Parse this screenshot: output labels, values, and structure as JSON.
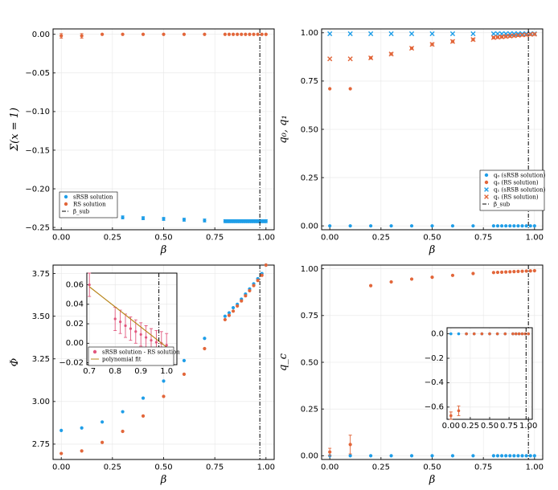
{
  "colors": {
    "blue": "#1f9ee8",
    "orange": "#e2663a",
    "pink": "#e2577e",
    "olive": "#b8861b"
  },
  "chart_data": [
    {
      "id": "tl",
      "type": "scatter",
      "xlabel": "β",
      "ylabel": "Σ(x = 1)",
      "xlim": [
        -0.04,
        1.04
      ],
      "ylim": [
        -0.253,
        0.007
      ],
      "xticks": [
        0,
        0.25,
        0.5,
        0.75,
        1.0
      ],
      "xtick_labels": [
        "0.00",
        "0.25",
        "0.50",
        "0.75",
        "1.00"
      ],
      "yticks": [
        0,
        -0.05,
        -0.1,
        -0.15,
        -0.2,
        -0.25
      ],
      "ytick_labels": [
        "0.00",
        "−0.05",
        "−0.10",
        "−0.15",
        "−0.20",
        "−0.25"
      ],
      "vline": 0.97,
      "legend_position": "bottom-left",
      "grid": true,
      "series": [
        {
          "name": "sRSB solution",
          "color": "blue",
          "marker": "circle",
          "x": [
            0.3,
            0.4,
            0.5,
            0.6,
            0.7,
            0.8,
            0.81,
            0.82,
            0.83,
            0.84,
            0.85,
            0.86,
            0.87,
            0.88,
            0.89,
            0.9,
            0.91,
            0.92,
            0.93,
            0.94,
            0.95,
            0.96,
            0.97,
            0.98,
            0.99,
            1.0
          ],
          "y": [
            -0.237,
            -0.238,
            -0.239,
            -0.24,
            -0.241,
            -0.242,
            -0.242,
            -0.242,
            -0.242,
            -0.242,
            -0.242,
            -0.242,
            -0.242,
            -0.242,
            -0.242,
            -0.242,
            -0.242,
            -0.242,
            -0.242,
            -0.242,
            -0.242,
            -0.242,
            -0.242,
            -0.242,
            -0.242,
            -0.242
          ],
          "err": [
            0.002,
            0.002,
            0.002,
            0.002,
            0.002,
            0.002,
            0.002,
            0.002,
            0.002,
            0.002,
            0.002,
            0.002,
            0.002,
            0.002,
            0.002,
            0.002,
            0.002,
            0.002,
            0.002,
            0.002,
            0.002,
            0.002,
            0.002,
            0.002,
            0.002,
            0.002
          ]
        },
        {
          "name": "RS solution",
          "color": "orange",
          "marker": "circle",
          "x": [
            0.0,
            0.1,
            0.2,
            0.3,
            0.4,
            0.5,
            0.6,
            0.7,
            0.8,
            0.82,
            0.84,
            0.86,
            0.88,
            0.9,
            0.92,
            0.94,
            0.96,
            0.98,
            1.0
          ],
          "y": [
            -0.002,
            -0.002,
            0.0,
            0.0,
            0.0,
            0.0,
            0.0,
            0.0,
            0.0,
            0.0,
            0.0,
            0.0,
            0.0,
            0.0,
            0.0,
            0.0,
            0.0,
            0.0,
            0.0
          ],
          "err": [
            0.003,
            0.003,
            0,
            0,
            0,
            0,
            0,
            0,
            0,
            0,
            0,
            0,
            0,
            0,
            0,
            0,
            0,
            0,
            0
          ]
        }
      ],
      "legend_extra": "β_sub"
    },
    {
      "id": "tr",
      "type": "scatter",
      "xlabel": "β",
      "ylabel": "q₀, q₁",
      "xlim": [
        -0.04,
        1.04
      ],
      "ylim": [
        -0.02,
        1.02
      ],
      "xticks": [
        0,
        0.25,
        0.5,
        0.75,
        1.0
      ],
      "xtick_labels": [
        "0.00",
        "0.25",
        "0.50",
        "0.75",
        "1.00"
      ],
      "yticks": [
        0,
        0.25,
        0.5,
        0.75,
        1.0
      ],
      "ytick_labels": [
        "0.00",
        "0.25",
        "0.50",
        "0.75",
        "1.00"
      ],
      "vline": 0.97,
      "legend_position": "bottom-right",
      "grid": true,
      "series": [
        {
          "name": "q₀ (sRSB solution)",
          "color": "blue",
          "marker": "circle",
          "x": [
            0.0,
            0.1,
            0.2,
            0.3,
            0.4,
            0.5,
            0.6,
            0.7,
            0.8,
            0.82,
            0.84,
            0.86,
            0.88,
            0.9,
            0.92,
            0.94,
            0.96,
            0.98,
            1.0
          ],
          "y": [
            0,
            0,
            0,
            0,
            0,
            0,
            0,
            0,
            0,
            0,
            0,
            0,
            0,
            0,
            0,
            0,
            0,
            0,
            0
          ]
        },
        {
          "name": "q₀ (RS solution)",
          "color": "orange",
          "marker": "circle",
          "x": [
            0.0,
            0.1,
            0.2,
            0.3,
            0.4,
            0.5,
            0.6,
            0.7,
            0.8,
            0.82,
            0.84,
            0.86,
            0.88,
            0.9,
            0.92,
            0.94,
            0.96,
            0.98,
            1.0
          ],
          "y": [
            0.71,
            0.71,
            0.87,
            0.89,
            0.92,
            0.94,
            0.955,
            0.965,
            0.975,
            0.977,
            0.979,
            0.981,
            0.983,
            0.985,
            0.987,
            0.989,
            0.99,
            0.992,
            0.993
          ]
        },
        {
          "name": "q₁ (sRSB solution)",
          "color": "blue",
          "marker": "cross",
          "x": [
            0.0,
            0.1,
            0.2,
            0.3,
            0.4,
            0.5,
            0.6,
            0.7,
            0.8,
            0.82,
            0.84,
            0.86,
            0.88,
            0.9,
            0.92,
            0.94,
            0.96,
            0.98,
            1.0
          ],
          "y": [
            0.995,
            0.995,
            0.995,
            0.995,
            0.995,
            0.995,
            0.995,
            0.995,
            0.995,
            0.995,
            0.995,
            0.995,
            0.995,
            0.995,
            0.995,
            0.995,
            0.995,
            0.995,
            0.995
          ]
        },
        {
          "name": "q₁ (RS solution)",
          "color": "orange",
          "marker": "cross",
          "x": [
            0.0,
            0.1,
            0.2,
            0.3,
            0.4,
            0.5,
            0.6,
            0.7,
            0.8,
            0.82,
            0.84,
            0.86,
            0.88,
            0.9,
            0.92,
            0.94,
            0.96,
            0.98,
            1.0
          ],
          "y": [
            0.865,
            0.865,
            0.87,
            0.89,
            0.92,
            0.94,
            0.955,
            0.965,
            0.975,
            0.977,
            0.979,
            0.981,
            0.983,
            0.985,
            0.987,
            0.989,
            0.99,
            0.992,
            0.993
          ]
        }
      ],
      "legend_extra": "β_sub"
    },
    {
      "id": "bl",
      "type": "scatter",
      "xlabel": "β",
      "ylabel": "Φ",
      "xlim": [
        -0.04,
        1.04
      ],
      "ylim": [
        2.66,
        3.8
      ],
      "xticks": [
        0,
        0.25,
        0.5,
        0.75,
        1.0
      ],
      "xtick_labels": [
        "0.00",
        "0.25",
        "0.50",
        "0.75",
        "1.00"
      ],
      "yticks": [
        2.75,
        3.0,
        3.25,
        3.5,
        3.75
      ],
      "ytick_labels": [
        "2.75",
        "3.00",
        "3.25",
        "3.50",
        "3.75"
      ],
      "vline": 0.97,
      "grid": true,
      "series": [
        {
          "name": "sRSB solution",
          "color": "blue",
          "marker": "circle",
          "x": [
            0.0,
            0.1,
            0.2,
            0.3,
            0.4,
            0.5,
            0.6,
            0.7,
            0.8,
            0.82,
            0.84,
            0.86,
            0.88,
            0.9,
            0.92,
            0.94,
            0.96,
            0.98,
            1.0
          ],
          "y": [
            2.83,
            2.845,
            2.88,
            2.94,
            3.02,
            3.12,
            3.24,
            3.37,
            3.5,
            3.52,
            3.55,
            3.57,
            3.6,
            3.63,
            3.66,
            3.69,
            3.72,
            3.75,
            3.8
          ]
        },
        {
          "name": "RS solution",
          "color": "orange",
          "marker": "circle",
          "x": [
            0.0,
            0.1,
            0.2,
            0.3,
            0.4,
            0.5,
            0.6,
            0.7,
            0.8,
            0.82,
            0.84,
            0.86,
            0.88,
            0.9,
            0.92,
            0.94,
            0.96,
            0.98,
            1.0
          ],
          "y": [
            2.695,
            2.71,
            2.76,
            2.825,
            2.915,
            3.03,
            3.16,
            3.31,
            3.48,
            3.505,
            3.53,
            3.56,
            3.59,
            3.62,
            3.65,
            3.68,
            3.71,
            3.74,
            3.8
          ]
        }
      ],
      "inset": {
        "xlim": [
          0.69,
          1.04
        ],
        "ylim": [
          -0.022,
          0.072
        ],
        "xticks": [
          0.7,
          0.8,
          0.9,
          1.0
        ],
        "xtick_labels": [
          "0.7",
          "0.8",
          "0.9",
          "1.0"
        ],
        "yticks": [
          -0.02,
          0.0,
          0.02,
          0.04,
          0.06
        ],
        "ytick_labels": [
          "−0.02",
          "0.00",
          "0.02",
          "0.04",
          "0.06"
        ],
        "vline": 0.97,
        "diff": {
          "name": "sRSB solution - RS solution",
          "color": "pink",
          "x": [
            0.7,
            0.8,
            0.82,
            0.84,
            0.86,
            0.88,
            0.9,
            0.92,
            0.94,
            0.96,
            0.98,
            1.0
          ],
          "y": [
            0.06,
            0.025,
            0.022,
            0.018,
            0.015,
            0.012,
            0.009,
            0.006,
            0.003,
            0.001,
            0.0,
            -0.002
          ],
          "err": [
            0.012,
            0.012,
            0.012,
            0.012,
            0.012,
            0.012,
            0.012,
            0.012,
            0.012,
            0.012,
            0.012,
            0.012
          ]
        },
        "fit": {
          "name": "polynomial fit",
          "color": "olive",
          "x": [
            0.7,
            1.0
          ],
          "y": [
            0.058,
            -0.004
          ]
        }
      }
    },
    {
      "id": "br",
      "type": "scatter",
      "xlabel": "β",
      "ylabel": "q_c",
      "xlim": [
        -0.04,
        1.04
      ],
      "ylim": [
        -0.02,
        1.02
      ],
      "xticks": [
        0,
        0.25,
        0.5,
        0.75,
        1.0
      ],
      "xtick_labels": [
        "0.00",
        "0.25",
        "0.50",
        "0.75",
        "1.00"
      ],
      "yticks": [
        0,
        0.25,
        0.5,
        0.75,
        1.0
      ],
      "ytick_labels": [
        "0.00",
        "0.25",
        "0.50",
        "0.75",
        "1.00"
      ],
      "vline": 0.97,
      "grid": true,
      "series": [
        {
          "name": "sRSB solution",
          "color": "blue",
          "marker": "circle",
          "x": [
            0.0,
            0.1,
            0.2,
            0.3,
            0.4,
            0.5,
            0.6,
            0.7,
            0.8,
            0.82,
            0.84,
            0.86,
            0.88,
            0.9,
            0.92,
            0.94,
            0.96,
            0.98,
            1.0
          ],
          "y": [
            0,
            0,
            0,
            0,
            0,
            0,
            0,
            0,
            0,
            0,
            0,
            0,
            0,
            0,
            0,
            0,
            0,
            0,
            0
          ]
        },
        {
          "name": "RS solution",
          "color": "orange",
          "marker": "circle",
          "x": [
            0.0,
            0.1,
            0.2,
            0.3,
            0.4,
            0.5,
            0.6,
            0.7,
            0.8,
            0.82,
            0.84,
            0.86,
            0.88,
            0.9,
            0.92,
            0.94,
            0.96,
            0.98,
            1.0
          ],
          "y": [
            0.02,
            0.06,
            0.91,
            0.93,
            0.945,
            0.955,
            0.965,
            0.975,
            0.98,
            0.981,
            0.982,
            0.983,
            0.984,
            0.985,
            0.986,
            0.987,
            0.988,
            0.989,
            0.99
          ],
          "err": [
            0.02,
            0.05,
            0,
            0,
            0,
            0,
            0,
            0,
            0,
            0,
            0,
            0,
            0,
            0,
            0,
            0,
            0,
            0,
            0
          ]
        }
      ],
      "inset": {
        "xlim": [
          -0.05,
          1.05
        ],
        "ylim": [
          -0.7,
          0.05
        ],
        "xticks": [
          0,
          0.25,
          0.5,
          0.75,
          1.0
        ],
        "xtick_labels": [
          "0.00",
          "0.25",
          "0.50",
          "0.75",
          "1.00"
        ],
        "yticks": [
          0.0,
          -0.2,
          -0.4,
          -0.6
        ],
        "ytick_labels": [
          "0.0",
          "−0.2",
          "−0.4",
          "−0.6"
        ],
        "vline": 0.97,
        "series": [
          {
            "color": "blue",
            "x": [
              0.0,
              0.1,
              0.2,
              0.3,
              0.4,
              0.5,
              0.6,
              0.7,
              0.8,
              0.84,
              0.88,
              0.92,
              0.96,
              1.0
            ],
            "y": [
              0,
              0,
              0,
              0,
              0,
              0,
              0,
              0,
              0,
              0,
              0,
              0,
              0,
              0
            ]
          },
          {
            "color": "orange",
            "x": [
              0.0,
              0.1,
              0.2,
              0.3,
              0.4,
              0.5,
              0.6,
              0.7,
              0.8,
              0.84,
              0.88,
              0.92,
              0.96,
              1.0
            ],
            "y": [
              -0.67,
              -0.63,
              0,
              0,
              0,
              0,
              0,
              0,
              0,
              0,
              0,
              0,
              0,
              0
            ],
            "err": [
              0.03,
              0.04,
              0,
              0,
              0,
              0,
              0,
              0,
              0,
              0,
              0,
              0,
              0,
              0
            ]
          }
        ]
      }
    }
  ]
}
